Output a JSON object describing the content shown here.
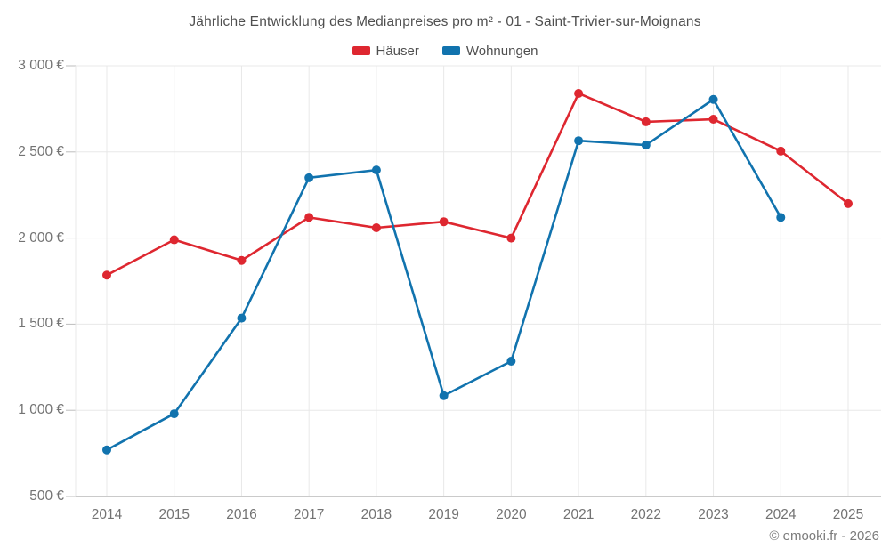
{
  "header": {
    "title": "Jährliche Entwicklung des Medianpreises pro m² - 01 - Saint-Trivier-sur-Moignans"
  },
  "legend": [
    {
      "label": "Häuser",
      "color": "#de2730"
    },
    {
      "label": "Wohnungen",
      "color": "#1173ae"
    }
  ],
  "footer": {
    "credit": "© emooki.fr - 2026"
  },
  "chart_data": {
    "type": "line",
    "title": "Jährliche Entwicklung des Medianpreises pro m² - 01 - Saint-Trivier-sur-Moignans",
    "categories": [
      2014,
      2015,
      2016,
      2017,
      2018,
      2019,
      2020,
      2021,
      2022,
      2023,
      2024,
      2025
    ],
    "series": [
      {
        "name": "Häuser",
        "color": "#de2730",
        "values": [
          1785,
          1990,
          1870,
          2120,
          2060,
          2095,
          2000,
          2840,
          2675,
          2690,
          2505,
          2200
        ]
      },
      {
        "name": "Wohnungen",
        "color": "#1173ae",
        "values": [
          770,
          980,
          1535,
          2350,
          2395,
          1085,
          1285,
          2565,
          2540,
          2805,
          2120,
          null
        ]
      }
    ],
    "xlabel": "",
    "ylabel": "",
    "ylim": [
      500,
      3000
    ],
    "y_ticks": [
      {
        "value": 500,
        "label": "500 €"
      },
      {
        "value": 1000,
        "label": "1 000 €"
      },
      {
        "value": 1500,
        "label": "1 500 €"
      },
      {
        "value": 2000,
        "label": "2 000 €"
      },
      {
        "value": 2500,
        "label": "2 500 €"
      },
      {
        "value": 3000,
        "label": "3 000 €"
      }
    ],
    "grid": true,
    "legend_position": "top",
    "marker": "circle"
  }
}
